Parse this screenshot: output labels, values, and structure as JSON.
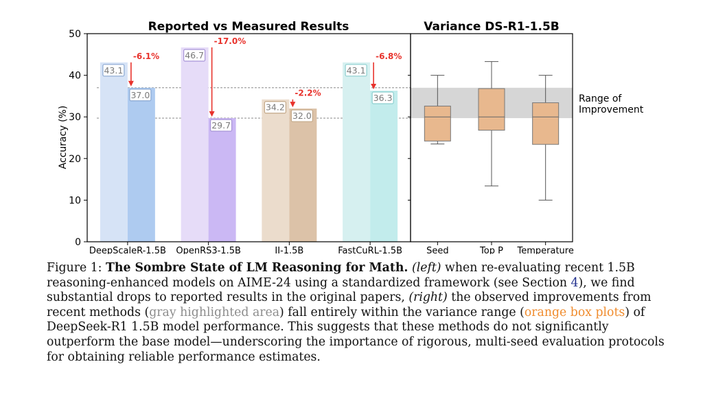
{
  "chart_data": [
    {
      "type": "bar",
      "title": "Reported vs Measured Results",
      "ylabel": "Accuracy (%)",
      "ylim": [
        0,
        50
      ],
      "yticks": [
        "0",
        "10",
        "20",
        "30",
        "40",
        "50"
      ],
      "categories": [
        "DeepScaleR-1.5B",
        "OpenRS3-1.5B",
        "II-1.5B",
        "FastCuRL-1.5B"
      ],
      "series": [
        {
          "values": [
            43.1,
            46.7,
            34.2,
            43.1
          ],
          "labels": [
            "43.1",
            "46.7",
            "34.2",
            "43.1"
          ]
        },
        {
          "values": [
            37.0,
            29.7,
            32.0,
            36.3
          ],
          "labels": [
            "37.0",
            "29.7",
            "32.0",
            "36.3"
          ]
        }
      ],
      "drops": [
        "-6.1%",
        "-17.0%",
        "-2.2%",
        "-6.8%"
      ],
      "reference_lines": [
        37.0,
        29.7
      ],
      "colors": {
        "light": [
          "#d6e3f6",
          "#e6dcf8",
          "#ebdccc",
          "#d6f0f0"
        ],
        "dark": [
          "#aecbf0",
          "#cbb8f4",
          "#dcc2a8",
          "#c2ecec"
        ],
        "label_border": [
          "#8aa8d2",
          "#a894d8",
          "#c4a888",
          "#8ccfcf"
        ],
        "drop": "#e8322c"
      }
    },
    {
      "type": "box",
      "title": "Variance DS-R1-1.5B",
      "categories": [
        "Seed",
        "Top P",
        "Temperature"
      ],
      "boxes": [
        {
          "min": 23.5,
          "q1": 24.2,
          "median": 30.0,
          "q3": 32.6,
          "max": 40.0
        },
        {
          "min": 13.4,
          "q1": 26.8,
          "median": 30.0,
          "q3": 36.8,
          "max": 43.3
        },
        {
          "min": 10.0,
          "q1": 23.4,
          "median": 30.0,
          "q3": 33.4,
          "max": 40.0
        }
      ],
      "improvement_band": [
        29.7,
        37.0
      ],
      "band_label": [
        "Range of",
        "Improvement"
      ],
      "colors": {
        "box": "#e8b88e",
        "band": "#d6d6d6"
      }
    }
  ],
  "caption": {
    "label": "Figure 1:",
    "bold": "The Sombre State of LM Reasoning for Math.",
    "left_tag": "(left)",
    "text1": "when re-evaluating recent 1.5B reasoning-enhanced models on AIME-24 using a standardized framework (see Section",
    "section_ref": "4",
    "text2": "), we find substantial drops to reported results in the original papers,",
    "right_tag": "(right)",
    "text3": "the observed improvements from recent methods (",
    "gray_text": "gray highlighted area",
    "text4": ") fall entirely within the variance range (",
    "orange_text": "orange box plots",
    "text5": ") of DeepSeek-R1 1.5B model performance. This suggests that these methods do not significantly outperform the base model—underscoring the importance of rigorous, multi-seed evaluation protocols for obtaining reliable performance estimates."
  }
}
